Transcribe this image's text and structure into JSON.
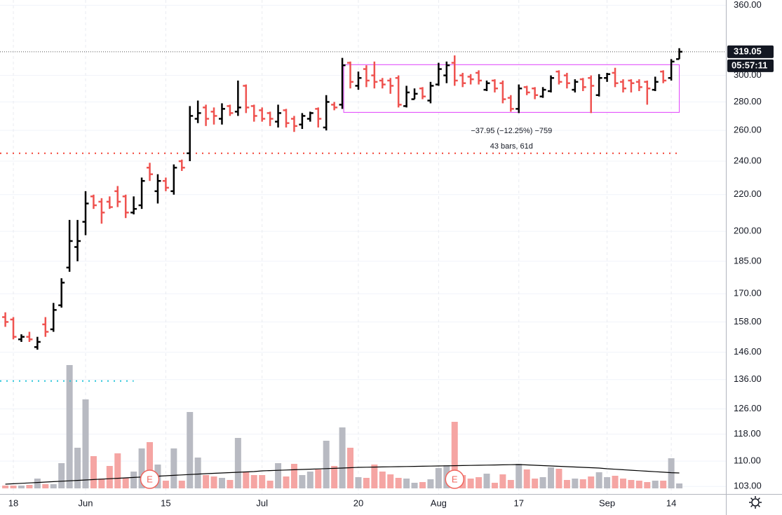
{
  "chart_data": {
    "type": "ohlc",
    "log_scale": true,
    "grid": true,
    "up_color": "#000000",
    "down_color": "#ef5350",
    "volume_up_color": "#b8bac2",
    "volume_down_color": "#f5a5a3",
    "ylim": [
      101,
      365
    ],
    "yticks": [
      {
        "value": 103,
        "label": "103.00"
      },
      {
        "value": 110,
        "label": "110.00"
      },
      {
        "value": 118,
        "label": "118.00"
      },
      {
        "value": 126,
        "label": "126.00"
      },
      {
        "value": 136,
        "label": "136.00"
      },
      {
        "value": 146,
        "label": "146.00"
      },
      {
        "value": 158,
        "label": "158.00"
      },
      {
        "value": 170,
        "label": "170.00"
      },
      {
        "value": 185,
        "label": "185.00"
      },
      {
        "value": 200,
        "label": "200.00"
      },
      {
        "value": 220,
        "label": "220.00"
      },
      {
        "value": 240,
        "label": "240.00"
      },
      {
        "value": 260,
        "label": "260.00"
      },
      {
        "value": 280,
        "label": "280.00"
      },
      {
        "value": 300,
        "label": "300.00"
      },
      {
        "value": 360,
        "label": "360.00"
      }
    ],
    "categories": [
      null,
      "18",
      null,
      null,
      null,
      null,
      null,
      null,
      null,
      null,
      "Jun",
      null,
      null,
      null,
      null,
      null,
      null,
      null,
      null,
      null,
      "15",
      null,
      null,
      null,
      null,
      null,
      null,
      null,
      null,
      null,
      null,
      null,
      "Jul",
      null,
      null,
      null,
      null,
      null,
      null,
      null,
      null,
      null,
      null,
      null,
      "20",
      null,
      null,
      null,
      null,
      null,
      null,
      null,
      null,
      null,
      "Aug",
      null,
      null,
      null,
      null,
      null,
      null,
      null,
      null,
      null,
      "17",
      null,
      null,
      null,
      null,
      null,
      null,
      null,
      null,
      null,
      null,
      "Sep",
      null,
      null,
      null,
      null,
      null,
      null,
      null,
      "14",
      null
    ],
    "open": [
      160,
      159,
      151,
      152,
      148,
      157,
      155,
      165,
      182,
      192,
      205,
      219,
      216,
      216,
      222,
      219,
      210,
      214,
      236,
      222,
      228,
      222,
      240,
      245,
      268,
      276,
      273,
      268,
      277,
      273,
      292,
      277,
      274,
      272,
      266,
      274,
      268,
      264,
      268,
      275,
      262,
      278,
      278,
      310,
      292,
      305,
      300,
      296,
      296,
      298,
      277,
      282,
      290,
      281,
      293,
      300,
      310,
      300,
      299,
      302,
      289,
      296,
      294,
      283,
      275,
      291,
      290,
      284,
      288,
      303,
      300,
      289,
      297,
      298,
      285,
      298,
      302,
      295,
      296,
      295,
      295,
      289,
      303,
      298,
      313
    ],
    "high": [
      162,
      160,
      153,
      154,
      152,
      160,
      166,
      177,
      206,
      206,
      222,
      220,
      218,
      219,
      225,
      220,
      219,
      230,
      239,
      232,
      230,
      238,
      241,
      277,
      281,
      278,
      276,
      279,
      278,
      296,
      293,
      278,
      276,
      273,
      278,
      275,
      270,
      272,
      273,
      276,
      285,
      280,
      314,
      311,
      303,
      308,
      311,
      298,
      298,
      300,
      292,
      290,
      291,
      295,
      310,
      311,
      316,
      302,
      301,
      304,
      296,
      297,
      296,
      285,
      293,
      292,
      291,
      291,
      300,
      304,
      302,
      297,
      298,
      300,
      301,
      302,
      306,
      297,
      297,
      297,
      296,
      299,
      304,
      313,
      322
    ],
    "low": [
      156,
      151,
      150,
      150,
      147,
      152,
      154,
      164,
      180,
      185,
      198,
      212,
      204,
      212,
      213,
      207,
      209,
      212,
      228,
      215,
      222,
      220,
      234,
      240,
      265,
      263,
      264,
      264,
      270,
      270,
      272,
      266,
      266,
      263,
      262,
      262,
      259,
      261,
      266,
      262,
      260,
      274,
      275,
      290,
      289,
      291,
      290,
      290,
      286,
      276,
      276,
      282,
      282,
      279,
      292,
      294,
      292,
      291,
      293,
      293,
      288,
      287,
      279,
      273,
      272,
      285,
      282,
      283,
      287,
      293,
      290,
      287,
      288,
      272,
      284,
      295,
      291,
      287,
      287,
      288,
      278,
      288,
      294,
      296,
      313
    ],
    "close": [
      158,
      152,
      152,
      151,
      150,
      154,
      163,
      175,
      195,
      195,
      215,
      214,
      210,
      213,
      216,
      210,
      212,
      228,
      232,
      228,
      224,
      236,
      236,
      270,
      272,
      268,
      270,
      275,
      272,
      276,
      276,
      270,
      268,
      268,
      272,
      265,
      263,
      270,
      272,
      268,
      280,
      276,
      308,
      295,
      298,
      296,
      295,
      293,
      292,
      278,
      287,
      286,
      284,
      292,
      305,
      308,
      296,
      294,
      297,
      296,
      294,
      290,
      282,
      275,
      290,
      287,
      285,
      289,
      298,
      295,
      294,
      295,
      291,
      292,
      298,
      301,
      294,
      290,
      294,
      291,
      290,
      295,
      296,
      311,
      319.05
    ],
    "volume": [
      4,
      4,
      4,
      5,
      14,
      6,
      6,
      36,
      176,
      58,
      127,
      46,
      14,
      32,
      50,
      15,
      24,
      57,
      66,
      34,
      11,
      57,
      11,
      109,
      44,
      19,
      17,
      15,
      12,
      72,
      24,
      19,
      19,
      11,
      36,
      17,
      35,
      19,
      24,
      27,
      68,
      32,
      87,
      58,
      16,
      15,
      34,
      24,
      20,
      15,
      14,
      8,
      9,
      13,
      29,
      33,
      95,
      19,
      14,
      16,
      21,
      8,
      20,
      12,
      35,
      27,
      14,
      16,
      30,
      28,
      12,
      14,
      13,
      17,
      23,
      16,
      18,
      14,
      12,
      11,
      9,
      11,
      11,
      43,
      7
    ],
    "volume_ma": [
      6,
      6.6,
      7.2,
      7.8,
      8.4,
      9,
      9.6,
      10.2,
      10.8,
      11.4,
      12,
      12.6,
      13.2,
      13.8,
      14.4,
      15,
      15.6,
      16.2,
      16.8,
      17.4,
      18,
      18.6,
      19.2,
      19.8,
      20.4,
      21,
      21.5,
      22,
      22.5,
      23,
      23.5,
      24,
      25,
      25.4,
      25.8,
      26.2,
      26.6,
      27,
      27.4,
      27.8,
      28.2,
      28.6,
      29,
      29.5,
      30,
      30.2,
      30.4,
      30.6,
      30.8,
      31,
      31.2,
      31.4,
      31.6,
      31.8,
      32,
      32.2,
      32.4,
      32.6,
      32.8,
      33,
      33.2,
      33.4,
      33.6,
      33.8,
      34,
      33.5,
      33,
      32.5,
      32,
      31.5,
      31,
      30.5,
      30,
      29.5,
      29,
      28,
      27.3,
      26.6,
      25.9,
      25.2,
      24.5,
      23.8,
      23.1,
      22.4,
      22
    ],
    "volume_ma_color": "#000000",
    "price_line": {
      "value": 319.05,
      "countdown": "05:57:11"
    },
    "levels": [
      {
        "value": 245,
        "color": "#f44336",
        "end_category": 84
      },
      {
        "value": 135.5,
        "color": "#26c6da",
        "end_category": 16
      }
    ],
    "range_box": {
      "low": 272.5,
      "high": 308.5,
      "start_category": 42,
      "end_category": 84,
      "color": "#e040fb",
      "text": "−37.95 (−12.25%) −759",
      "bars_text": "43 bars, 61d"
    },
    "earnings": [
      {
        "index": 18,
        "label": "E"
      },
      {
        "index": 56,
        "label": "E"
      }
    ]
  }
}
